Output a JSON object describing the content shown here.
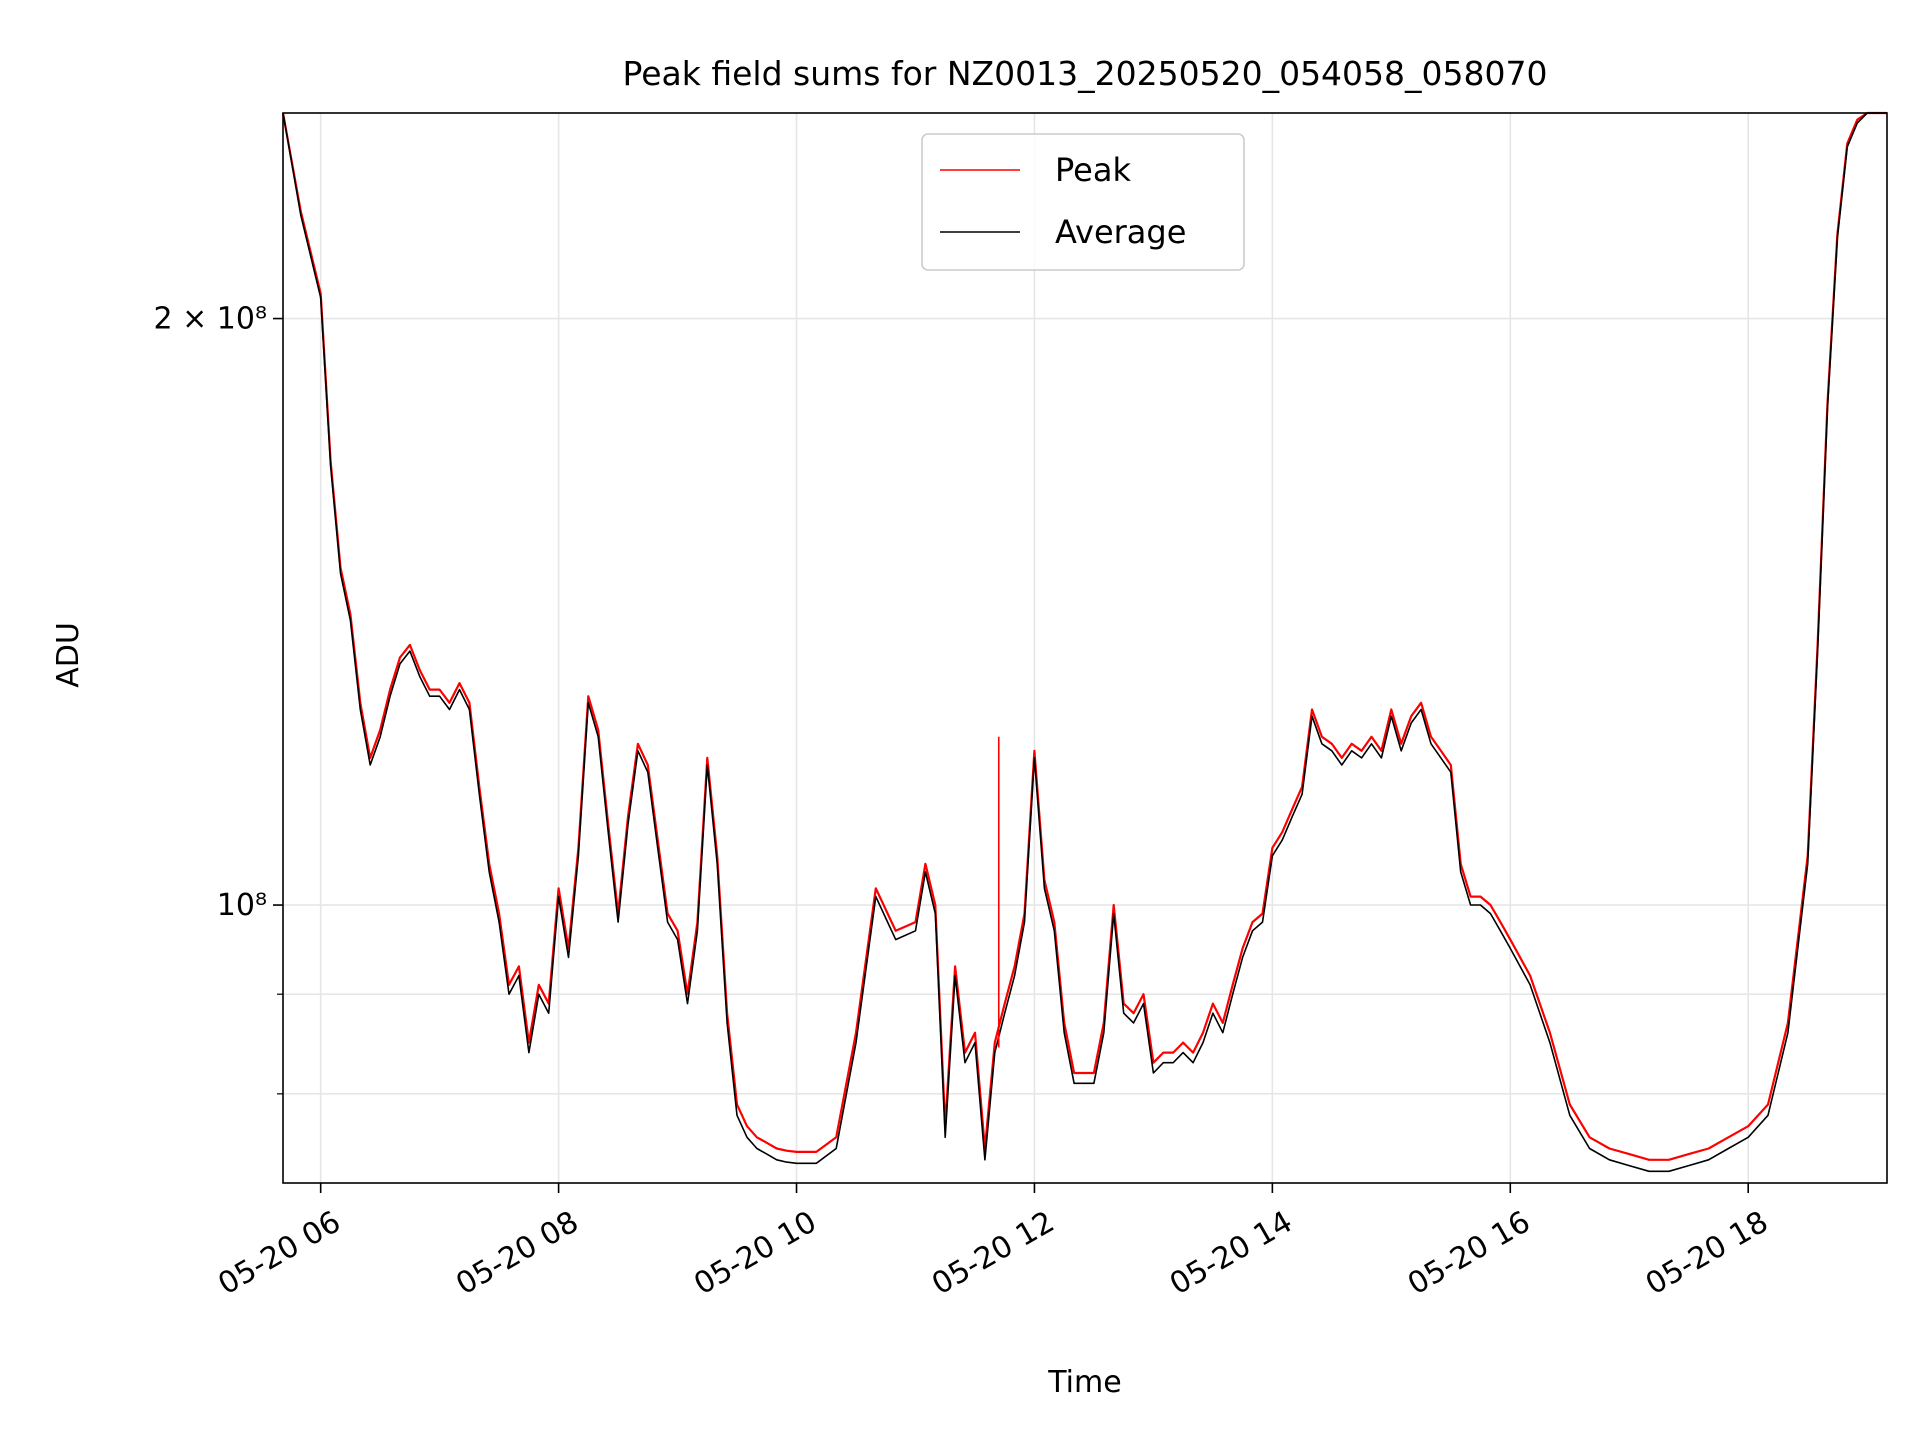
{
  "chart_data": {
    "type": "line",
    "title": "Peak field sums for NZ0013_20250520_054058_058070",
    "xlabel": "Time",
    "ylabel": "ADU",
    "x_scale": "time",
    "y_scale": "log",
    "xlim": [
      "2025-05-20 05:41",
      "2025-05-20 19:10"
    ],
    "ylim": [
      72000000,
      255000000
    ],
    "x_ticks": [
      "05-20 06",
      "05-20 08",
      "05-20 10",
      "05-20 12",
      "05-20 14",
      "05-20 16",
      "05-20 18"
    ],
    "y_tick_labels": [
      {
        "value": 100000000,
        "label": "10⁸"
      },
      {
        "value": 200000000,
        "label": "2 × 10⁸"
      }
    ],
    "y_minor_ticks": [
      80000000,
      90000000
    ],
    "grid": true,
    "legend": {
      "position": "top-center",
      "entries": [
        "Peak",
        "Average"
      ]
    },
    "colors": {
      "Peak": "#ff0000",
      "Average": "#000000"
    },
    "x": [
      "05:41",
      "05:50",
      "06:00",
      "06:05",
      "06:10",
      "06:15",
      "06:20",
      "06:25",
      "06:30",
      "06:35",
      "06:40",
      "06:45",
      "06:50",
      "06:55",
      "07:00",
      "07:05",
      "07:10",
      "07:15",
      "07:20",
      "07:25",
      "07:30",
      "07:35",
      "07:40",
      "07:45",
      "07:50",
      "07:55",
      "08:00",
      "08:05",
      "08:10",
      "08:15",
      "08:20",
      "08:25",
      "08:30",
      "08:35",
      "08:40",
      "08:45",
      "08:50",
      "08:55",
      "09:00",
      "09:05",
      "09:10",
      "09:15",
      "09:20",
      "09:25",
      "09:30",
      "09:35",
      "09:40",
      "09:45",
      "09:50",
      "09:55",
      "10:00",
      "10:10",
      "10:20",
      "10:30",
      "10:40",
      "10:50",
      "11:00",
      "11:05",
      "11:10",
      "11:15",
      "11:20",
      "11:25",
      "11:30",
      "11:35",
      "11:40",
      "11:45",
      "11:50",
      "11:55",
      "12:00",
      "12:05",
      "12:10",
      "12:15",
      "12:20",
      "12:25",
      "12:30",
      "12:35",
      "12:40",
      "12:45",
      "12:50",
      "12:55",
      "13:00",
      "13:05",
      "13:10",
      "13:15",
      "13:20",
      "13:25",
      "13:30",
      "13:35",
      "13:40",
      "13:45",
      "13:50",
      "13:55",
      "14:00",
      "14:05",
      "14:10",
      "14:15",
      "14:20",
      "14:25",
      "14:30",
      "14:35",
      "14:40",
      "14:45",
      "14:50",
      "14:55",
      "15:00",
      "15:05",
      "15:10",
      "15:15",
      "15:20",
      "15:25",
      "15:30",
      "15:35",
      "15:40",
      "15:45",
      "15:50",
      "15:55",
      "16:00",
      "16:10",
      "16:20",
      "16:30",
      "16:40",
      "16:50",
      "17:00",
      "17:10",
      "17:20",
      "17:30",
      "17:40",
      "17:50",
      "18:00",
      "18:10",
      "18:20",
      "18:30",
      "18:35",
      "18:40",
      "18:45",
      "18:50",
      "18:55",
      "19:00",
      "19:05",
      "19:10"
    ],
    "series": [
      {
        "name": "Average",
        "values": [
          255000000,
          226000000,
          205000000,
          168000000,
          148000000,
          140000000,
          126000000,
          118000000,
          122000000,
          128000000,
          133000000,
          135000000,
          131000000,
          128000000,
          128000000,
          126000000,
          129000000,
          126000000,
          114000000,
          104000000,
          98000000,
          90000000,
          92000000,
          84000000,
          90000000,
          88000000,
          101000000,
          94000000,
          106000000,
          127000000,
          122000000,
          109000000,
          98000000,
          110000000,
          120000000,
          117000000,
          107000000,
          98000000,
          96000000,
          89000000,
          97000000,
          118000000,
          105000000,
          87000000,
          78000000,
          76000000,
          75000000,
          74500000,
          74000000,
          73800000,
          73700000,
          73700000,
          75000000,
          85000000,
          101000000,
          96000000,
          97000000,
          104000000,
          99000000,
          76000000,
          92000000,
          83000000,
          85000000,
          74000000,
          84000000,
          88000000,
          92000000,
          98000000,
          119000000,
          102000000,
          97000000,
          86000000,
          81000000,
          81000000,
          81000000,
          86000000,
          99000000,
          88000000,
          87000000,
          89000000,
          82000000,
          83000000,
          83000000,
          84000000,
          83000000,
          85000000,
          88000000,
          86000000,
          90000000,
          94000000,
          97000000,
          98000000,
          106000000,
          108000000,
          111000000,
          114000000,
          125000000,
          121000000,
          120000000,
          118000000,
          120000000,
          119000000,
          121000000,
          119000000,
          125000000,
          120000000,
          124000000,
          126000000,
          121000000,
          119000000,
          117000000,
          104000000,
          100000000,
          100000000,
          99000000,
          97000000,
          95000000,
          91000000,
          85000000,
          78000000,
          75000000,
          74000000,
          73500000,
          73000000,
          73000000,
          73500000,
          74000000,
          75000000,
          76000000,
          78000000,
          86000000,
          105000000,
          135000000,
          180000000,
          220000000,
          245000000,
          252000000,
          255000000,
          258000000,
          260000000
        ]
      },
      {
        "name": "Peak",
        "values": [
          255000000,
          227000000,
          206000000,
          169000000,
          149000000,
          141000000,
          127000000,
          119000000,
          123000000,
          129000000,
          134000000,
          136000000,
          132000000,
          129000000,
          129000000,
          127000000,
          130000000,
          127000000,
          115000000,
          105000000,
          99000000,
          91000000,
          93000000,
          85000000,
          91000000,
          89000000,
          102000000,
          95000000,
          107000000,
          128000000,
          123000000,
          110000000,
          99000000,
          111000000,
          121000000,
          118000000,
          108000000,
          99000000,
          97000000,
          90000000,
          98000000,
          119000000,
          106000000,
          88000000,
          79000000,
          77000000,
          76000000,
          75500000,
          75000000,
          74800000,
          74700000,
          74700000,
          76000000,
          86000000,
          102000000,
          97000000,
          98000000,
          105000000,
          100000000,
          77000000,
          93000000,
          84000000,
          86000000,
          75000000,
          85000000,
          89000000,
          93000000,
          99000000,
          120000000,
          103000000,
          98000000,
          87000000,
          82000000,
          82000000,
          82000000,
          87000000,
          100000000,
          89000000,
          88000000,
          90000000,
          83000000,
          84000000,
          84000000,
          85000000,
          84000000,
          86000000,
          89000000,
          87000000,
          91000000,
          95000000,
          98000000,
          99000000,
          107000000,
          109000000,
          112000000,
          115000000,
          126000000,
          122000000,
          121000000,
          119000000,
          121000000,
          120000000,
          122000000,
          120000000,
          126000000,
          121000000,
          125000000,
          127000000,
          122000000,
          120000000,
          118000000,
          105000000,
          101000000,
          101000000,
          100000000,
          98000000,
          96000000,
          92000000,
          86000000,
          79000000,
          76000000,
          75000000,
          74500000,
          74000000,
          74000000,
          74500000,
          75000000,
          76000000,
          77000000,
          79000000,
          87000000,
          106000000,
          136000000,
          181000000,
          221000000,
          246000000,
          253000000,
          256000000,
          259000000,
          261000000
        ]
      }
    ],
    "spike": {
      "series": "Peak",
      "x": "11:42",
      "value": 122000000
    }
  }
}
